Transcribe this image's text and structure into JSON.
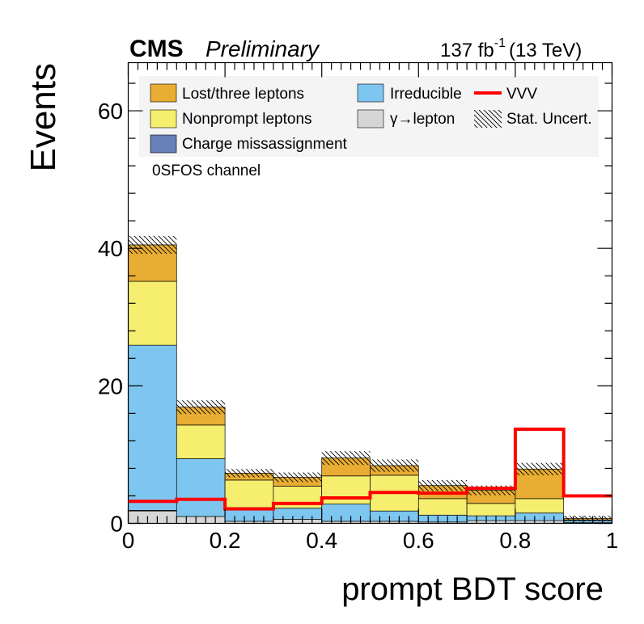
{
  "header": {
    "experiment": "CMS",
    "status": "Preliminary",
    "lumi_value": "137 fb",
    "lumi_exponent": "-1",
    "lumi_energy": "(13 TeV)"
  },
  "channel_label": "0SFOS channel",
  "colors": {
    "lost_three_leptons": "#e8ad32",
    "nonprompt_leptons": "#f5ee6e",
    "charge_missassignment": "#6781b8",
    "irreducible": "#7dc6f0",
    "gamma_lepton": "#d6d6d6",
    "vvv": "#ff0000"
  },
  "legend": {
    "lost": "Lost/three leptons",
    "nonprompt": "Nonprompt leptons",
    "charge": "Charge missassignment",
    "irreducible": "Irreducible",
    "gamma": "γ→lepton",
    "vvv": "VVV",
    "stat": "Stat. Uncert."
  },
  "chart_data": {
    "type": "bar",
    "stacked": true,
    "xlabel": "prompt BDT score",
    "ylabel": "Events",
    "xlim": [
      0,
      1
    ],
    "ylim": [
      0,
      67
    ],
    "x_ticks": [
      "0",
      "0.2",
      "0.4",
      "0.6",
      "0.8",
      "1"
    ],
    "y_ticks": [
      "0",
      "20",
      "40",
      "60"
    ],
    "bin_edges": [
      0,
      0.1,
      0.2,
      0.3,
      0.4,
      0.5,
      0.6,
      0.7,
      0.8,
      0.9,
      1.0
    ],
    "series": [
      {
        "name": "γ→lepton",
        "values": [
          1.8,
          1.0,
          0.3,
          0.6,
          0.3,
          0.3,
          0.2,
          0.4,
          0.4,
          0.1
        ]
      },
      {
        "name": "Charge missassignment",
        "values": [
          0.1,
          0.0,
          0.0,
          0.0,
          0.0,
          0.0,
          0.0,
          0.0,
          0.0,
          0.0
        ]
      },
      {
        "name": "Irreducible",
        "values": [
          24.0,
          8.4,
          2.0,
          1.6,
          2.5,
          1.5,
          1.0,
          0.7,
          1.1,
          0.3
        ]
      },
      {
        "name": "Nonprompt leptons",
        "values": [
          9.3,
          4.9,
          4.0,
          3.2,
          4.1,
          5.2,
          2.4,
          1.8,
          2.1,
          0.1
        ]
      },
      {
        "name": "Lost/three leptons",
        "values": [
          5.3,
          2.6,
          1.0,
          1.3,
          2.6,
          1.4,
          1.9,
          1.9,
          4.3,
          0.2
        ]
      }
    ],
    "stat_uncert_halfwidth": [
      1.3,
      1.0,
      0.6,
      0.7,
      1.0,
      0.9,
      0.8,
      0.7,
      0.9,
      0.4
    ],
    "line_series": {
      "name": "VVV",
      "values": [
        3.2,
        3.5,
        2.1,
        2.9,
        3.7,
        4.5,
        4.4,
        5.1,
        13.7,
        4.0
      ]
    }
  }
}
